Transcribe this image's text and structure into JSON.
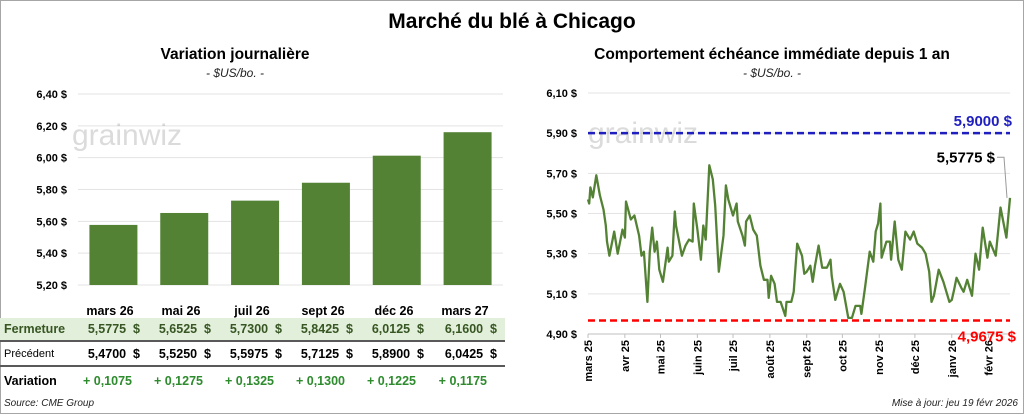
{
  "title": "Marché du blé à Chicago",
  "watermark": "grainwiz",
  "colors": {
    "bar": "#548235",
    "line": "#548235",
    "high": "#1f1fbf",
    "low": "#ff0000",
    "table_highlight": "#e2efda",
    "positive": "#2e8b2e"
  },
  "chart_data": [
    {
      "type": "bar",
      "title": "Variation journalière",
      "subtitle": "- $US/bo. -",
      "categories": [
        "mars 26",
        "mai 26",
        "juil 26",
        "sept 26",
        "déc 26",
        "mars 27"
      ],
      "values": [
        5.5775,
        5.6525,
        5.73,
        5.8425,
        6.0125,
        6.16
      ],
      "ylim": [
        5.2,
        6.4
      ],
      "yticks": [
        "5,20 $",
        "5,40 $",
        "5,60 $",
        "5,80 $",
        "6,00 $",
        "6,20 $",
        "6,40 $"
      ],
      "grid": true
    },
    {
      "type": "line",
      "title": "Comportement échéance immédiate depuis 1 an",
      "subtitle": "- $US/bo. -",
      "ylim": [
        4.9,
        6.1
      ],
      "yticks": [
        "4,90 $",
        "5,10 $",
        "5,30 $",
        "5,50 $",
        "5,70 $",
        "5,90 $",
        "6,10 $"
      ],
      "xlim": [
        "2025-03-01",
        "2026-02-19"
      ],
      "xticks": [
        "mars 25",
        "avr 25",
        "mai 25",
        "juin 25",
        "juil 25",
        "août 25",
        "sept 25",
        "oct 25",
        "nov 25",
        "déc 25",
        "janv 26",
        "févr 26"
      ],
      "grid": true,
      "high": {
        "value": 5.9,
        "label": "5,9000 $"
      },
      "low": {
        "value": 4.9675,
        "label": "4,9675 $"
      },
      "last": {
        "value": 5.5775,
        "label": "5,5775 $"
      },
      "series": [
        {
          "points": [
            [
              "2025-03-01",
              5.57
            ],
            [
              "2025-03-02",
              5.55
            ],
            [
              "2025-03-03",
              5.63
            ],
            [
              "2025-03-05",
              5.58
            ],
            [
              "2025-03-08",
              5.69
            ],
            [
              "2025-03-11",
              5.59
            ],
            [
              "2025-03-14",
              5.52
            ],
            [
              "2025-03-16",
              5.44
            ],
            [
              "2025-03-17",
              5.36
            ],
            [
              "2025-03-19",
              5.29
            ],
            [
              "2025-03-23",
              5.41
            ],
            [
              "2025-03-26",
              5.3
            ],
            [
              "2025-03-30",
              5.42
            ],
            [
              "2025-04-01",
              5.38
            ],
            [
              "2025-04-02",
              5.56
            ],
            [
              "2025-04-06",
              5.47
            ],
            [
              "2025-04-09",
              5.49
            ],
            [
              "2025-04-13",
              5.39
            ],
            [
              "2025-04-15",
              5.29
            ],
            [
              "2025-04-17",
              5.31
            ],
            [
              "2025-04-20",
              5.06
            ],
            [
              "2025-04-22",
              5.31
            ],
            [
              "2025-04-24",
              5.43
            ],
            [
              "2025-04-26",
              5.31
            ],
            [
              "2025-04-28",
              5.36
            ],
            [
              "2025-04-30",
              5.22
            ],
            [
              "2025-05-03",
              5.16
            ],
            [
              "2025-05-07",
              5.33
            ],
            [
              "2025-05-08",
              5.26
            ],
            [
              "2025-05-11",
              5.29
            ],
            [
              "2025-05-13",
              5.51
            ],
            [
              "2025-05-14",
              5.44
            ],
            [
              "2025-05-19",
              5.29
            ],
            [
              "2025-05-22",
              5.34
            ],
            [
              "2025-05-25",
              5.37
            ],
            [
              "2025-05-28",
              5.36
            ],
            [
              "2025-05-29",
              5.55
            ],
            [
              "2025-06-01",
              5.42
            ],
            [
              "2025-06-04",
              5.27
            ],
            [
              "2025-06-06",
              5.44
            ],
            [
              "2025-06-08",
              5.37
            ],
            [
              "2025-06-11",
              5.74
            ],
            [
              "2025-06-14",
              5.67
            ],
            [
              "2025-06-16",
              5.54
            ],
            [
              "2025-06-19",
              5.21
            ],
            [
              "2025-06-23",
              5.39
            ],
            [
              "2025-06-25",
              5.64
            ],
            [
              "2025-06-27",
              5.57
            ],
            [
              "2025-07-01",
              5.49
            ],
            [
              "2025-07-04",
              5.55
            ],
            [
              "2025-07-05",
              5.46
            ],
            [
              "2025-07-09",
              5.39
            ],
            [
              "2025-07-11",
              5.34
            ],
            [
              "2025-07-12",
              5.46
            ],
            [
              "2025-07-15",
              5.49
            ],
            [
              "2025-07-18",
              5.42
            ],
            [
              "2025-07-21",
              5.39
            ],
            [
              "2025-07-24",
              5.24
            ],
            [
              "2025-07-27",
              5.17
            ],
            [
              "2025-07-30",
              5.17
            ],
            [
              "2025-07-31",
              5.08
            ],
            [
              "2025-08-02",
              5.19
            ],
            [
              "2025-08-05",
              5.15
            ],
            [
              "2025-08-07",
              5.06
            ],
            [
              "2025-08-10",
              5.06
            ],
            [
              "2025-08-14",
              4.99
            ],
            [
              "2025-08-15",
              5.06
            ],
            [
              "2025-08-19",
              5.06
            ],
            [
              "2025-08-21",
              5.11
            ],
            [
              "2025-08-24",
              5.35
            ],
            [
              "2025-08-28",
              5.29
            ],
            [
              "2025-08-30",
              5.2
            ],
            [
              "2025-09-01",
              5.21
            ],
            [
              "2025-09-04",
              5.24
            ],
            [
              "2025-09-06",
              5.16
            ],
            [
              "2025-09-08",
              5.24
            ],
            [
              "2025-09-11",
              5.34
            ],
            [
              "2025-09-14",
              5.23
            ],
            [
              "2025-09-18",
              5.23
            ],
            [
              "2025-09-21",
              5.27
            ],
            [
              "2025-09-22",
              5.19
            ],
            [
              "2025-09-25",
              5.07
            ],
            [
              "2025-09-29",
              5.15
            ],
            [
              "2025-10-02",
              5.11
            ],
            [
              "2025-10-06",
              4.98
            ],
            [
              "2025-10-09",
              4.98
            ],
            [
              "2025-10-12",
              5.04
            ],
            [
              "2025-10-16",
              5.04
            ],
            [
              "2025-10-17",
              5.0
            ],
            [
              "2025-10-20",
              5.13
            ],
            [
              "2025-10-24",
              5.31
            ],
            [
              "2025-10-27",
              5.26
            ],
            [
              "2025-10-29",
              5.41
            ],
            [
              "2025-10-31",
              5.45
            ],
            [
              "2025-11-02",
              5.55
            ],
            [
              "2025-11-03",
              5.28
            ],
            [
              "2025-11-07",
              5.36
            ],
            [
              "2025-11-10",
              5.36
            ],
            [
              "2025-11-11",
              5.27
            ],
            [
              "2025-11-14",
              5.46
            ],
            [
              "2025-11-17",
              5.27
            ],
            [
              "2025-11-20",
              5.22
            ],
            [
              "2025-11-23",
              5.41
            ],
            [
              "2025-11-27",
              5.37
            ],
            [
              "2025-11-30",
              5.41
            ],
            [
              "2025-12-03",
              5.35
            ],
            [
              "2025-12-07",
              5.33
            ],
            [
              "2025-12-10",
              5.3
            ],
            [
              "2025-12-13",
              5.21
            ],
            [
              "2025-12-15",
              5.06
            ],
            [
              "2025-12-17",
              5.09
            ],
            [
              "2025-12-21",
              5.22
            ],
            [
              "2025-12-25",
              5.16
            ],
            [
              "2025-12-30",
              5.06
            ],
            [
              "2026-01-01",
              5.07
            ],
            [
              "2026-01-03",
              5.12
            ],
            [
              "2026-01-05",
              5.18
            ],
            [
              "2026-01-09",
              5.13
            ],
            [
              "2026-01-11",
              5.11
            ],
            [
              "2026-01-14",
              5.17
            ],
            [
              "2026-01-18",
              5.09
            ],
            [
              "2026-01-21",
              5.3
            ],
            [
              "2026-01-24",
              5.22
            ],
            [
              "2026-01-27",
              5.43
            ],
            [
              "2026-01-31",
              5.28
            ],
            [
              "2026-02-02",
              5.36
            ],
            [
              "2026-02-07",
              5.29
            ],
            [
              "2026-02-11",
              5.53
            ],
            [
              "2026-02-16",
              5.38
            ],
            [
              "2026-02-19",
              5.5775
            ]
          ]
        }
      ]
    }
  ],
  "table": {
    "columns": [
      "mars 26",
      "mai 26",
      "juil 26",
      "sept 26",
      "déc 26",
      "mars 27"
    ],
    "rows": [
      {
        "label": "Fermeture",
        "values": [
          "5,5775  $",
          "5,6525  $",
          "5,7300  $",
          "5,8425  $",
          "6,0125  $",
          "6,1600  $"
        ]
      },
      {
        "label": "Précédent",
        "values": [
          "5,4700  $",
          "5,5250  $",
          "5,5975  $",
          "5,7125  $",
          "5,8900  $",
          "6,0425  $"
        ]
      },
      {
        "label": "Variation",
        "values": [
          "+ 0,1075",
          "+ 0,1275",
          "+ 0,1325",
          "+ 0,1300",
          "+ 0,1225",
          "+ 0,1175"
        ]
      }
    ]
  },
  "footer": {
    "source": "Source: CME Group",
    "updated": "Mise à jour: jeu 19 févr 2026"
  }
}
